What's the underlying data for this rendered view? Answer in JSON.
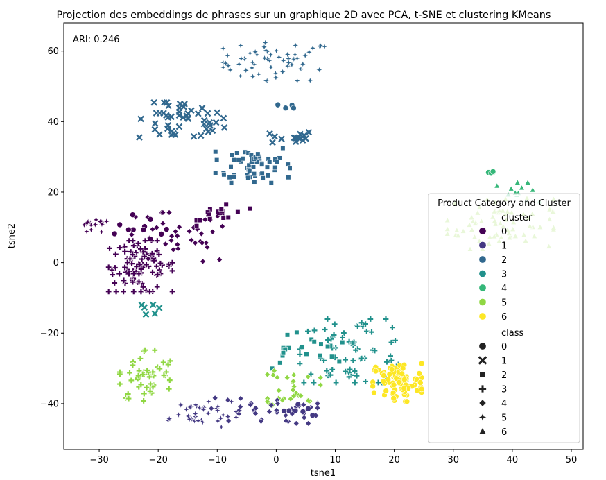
{
  "chart_data": {
    "type": "scatter",
    "title": "Projection des embeddings de phrases sur un graphique 2D avec PCA, t-SNE et clustering KMeans",
    "xlabel": "tsne1",
    "ylabel": "tsne2",
    "xlim": [
      -36,
      52
    ],
    "ylim": [
      -53,
      68
    ],
    "xticks": [
      -30,
      -20,
      -10,
      0,
      10,
      20,
      30,
      40,
      50
    ],
    "yticks": [
      -40,
      -20,
      0,
      20,
      40,
      60
    ],
    "xtick_labels": [
      "−30",
      "−20",
      "−10",
      "0",
      "10",
      "20",
      "30",
      "40",
      "50"
    ],
    "ytick_labels": [
      "−40",
      "−20",
      "0",
      "20",
      "40",
      "60"
    ],
    "annotation": "ARI: 0.246",
    "grid": false,
    "legend": {
      "title": "Product Category and Cluster",
      "placement": "lower-right",
      "cluster_heading": "cluster",
      "class_heading": "class",
      "clusters": [
        {
          "label": "0",
          "color": "#440154"
        },
        {
          "label": "1",
          "color": "#443983"
        },
        {
          "label": "2",
          "color": "#31688e"
        },
        {
          "label": "3",
          "color": "#21918c"
        },
        {
          "label": "4",
          "color": "#35b779"
        },
        {
          "label": "5",
          "color": "#90d743"
        },
        {
          "label": "6",
          "color": "#fde725"
        }
      ],
      "classes": [
        {
          "label": "0",
          "marker": "circle"
        },
        {
          "label": "1",
          "marker": "x"
        },
        {
          "label": "2",
          "marker": "square"
        },
        {
          "label": "3",
          "marker": "plus"
        },
        {
          "label": "4",
          "marker": "diamond"
        },
        {
          "label": "5",
          "marker": "star"
        },
        {
          "label": "6",
          "marker": "triangle"
        }
      ]
    },
    "groups": [
      {
        "name": "2-5",
        "cluster": 2,
        "class": 5,
        "center": [
          0,
          57
        ],
        "spread": [
          5,
          3
        ],
        "n": 60
      },
      {
        "name": "2-1a",
        "cluster": 2,
        "class": 1,
        "center": [
          -16,
          40
        ],
        "spread": [
          4,
          3
        ],
        "n": 50
      },
      {
        "name": "2-0a",
        "cluster": 2,
        "class": 0,
        "center": [
          1.5,
          44
        ],
        "spread": [
          0.8,
          0.7
        ],
        "n": 5
      },
      {
        "name": "2-1b",
        "cluster": 2,
        "class": 1,
        "center": [
          2.5,
          35.5
        ],
        "spread": [
          2,
          1
        ],
        "n": 15
      },
      {
        "name": "2-2",
        "cluster": 2,
        "class": 2,
        "center": [
          -4,
          28
        ],
        "spread": [
          3.5,
          3
        ],
        "n": 60
      },
      {
        "name": "4-0",
        "cluster": 4,
        "class": 0,
        "center": [
          36.5,
          25.5
        ],
        "spread": [
          0.4,
          0.3
        ],
        "n": 4
      },
      {
        "name": "4-6",
        "cluster": 4,
        "class": 6,
        "center": [
          41,
          20
        ],
        "spread": [
          2,
          1.5
        ],
        "n": 12
      },
      {
        "name": "5-6",
        "cluster": 5,
        "class": 6,
        "center": [
          38,
          11
        ],
        "spread": [
          5,
          4
        ],
        "n": 70
      },
      {
        "name": "0-3",
        "cluster": 0,
        "class": 3,
        "center": [
          -23,
          -1
        ],
        "spread": [
          3,
          4
        ],
        "n": 100
      },
      {
        "name": "0-4",
        "cluster": 0,
        "class": 4,
        "center": [
          -17,
          7
        ],
        "spread": [
          5,
          4
        ],
        "n": 40
      },
      {
        "name": "0-0",
        "cluster": 0,
        "class": 0,
        "center": [
          -22,
          10
        ],
        "spread": [
          3,
          2
        ],
        "n": 12
      },
      {
        "name": "0-5",
        "cluster": 0,
        "class": 5,
        "center": [
          -31,
          10
        ],
        "spread": [
          1.5,
          1.2
        ],
        "n": 15
      },
      {
        "name": "0-2",
        "cluster": 0,
        "class": 2,
        "center": [
          -9,
          14
        ],
        "spread": [
          2.5,
          2
        ],
        "n": 18
      },
      {
        "name": "3-1",
        "cluster": 3,
        "class": 1,
        "center": [
          -21,
          -13
        ],
        "spread": [
          1,
          1
        ],
        "n": 6
      },
      {
        "name": "3-3",
        "cluster": 3,
        "class": 3,
        "center": [
          13,
          -25
        ],
        "spread": [
          5,
          5
        ],
        "n": 70
      },
      {
        "name": "3-2",
        "cluster": 3,
        "class": 2,
        "center": [
          4,
          -25
        ],
        "spread": [
          4,
          3
        ],
        "n": 20
      },
      {
        "name": "6-0",
        "cluster": 6,
        "class": 0,
        "center": [
          20.5,
          -34
        ],
        "spread": [
          2.3,
          3
        ],
        "n": 90
      },
      {
        "name": "5-3",
        "cluster": 5,
        "class": 3,
        "center": [
          -22,
          -32
        ],
        "spread": [
          2.5,
          4
        ],
        "n": 50
      },
      {
        "name": "5-4",
        "cluster": 5,
        "class": 4,
        "center": [
          3,
          -35
        ],
        "spread": [
          2.5,
          3
        ],
        "n": 30
      },
      {
        "name": "1-5",
        "cluster": 1,
        "class": 5,
        "center": [
          -14,
          -43
        ],
        "spread": [
          4,
          2
        ],
        "n": 35
      },
      {
        "name": "1-4",
        "cluster": 1,
        "class": 4,
        "center": [
          -2,
          -42
        ],
        "spread": [
          5,
          2
        ],
        "n": 40
      },
      {
        "name": "1-0",
        "cluster": 1,
        "class": 0,
        "center": [
          4,
          -42
        ],
        "spread": [
          1.5,
          1
        ],
        "n": 8
      }
    ]
  }
}
